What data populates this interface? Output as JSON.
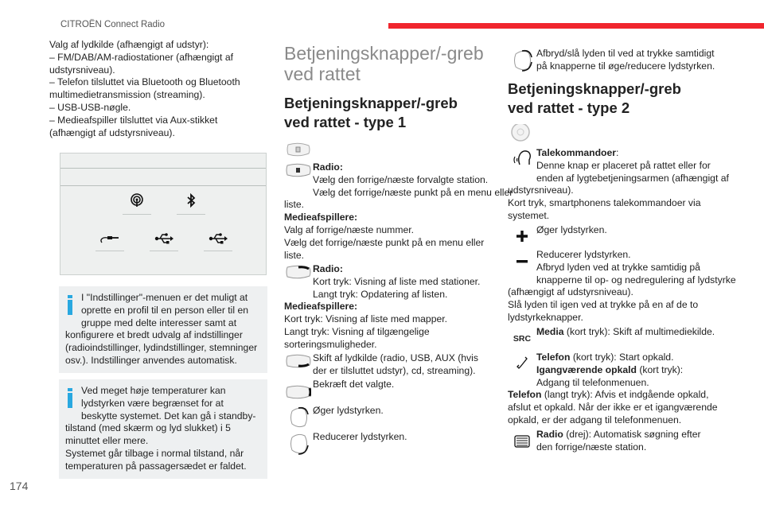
{
  "header": {
    "title": "CITROËN Connect Radio",
    "accent_color": "#f0262e"
  },
  "page_number": "174",
  "left": {
    "intro": "Valg af lydkilde (afhængigt af udstyr):\n– FM/DAB/AM-radiostationer (afhængigt af\nudstyrsniveau).\n– Telefon tilsluttet via Bluetooth og Bluetooth\nmultimedietransmission (streaming).\n– USB-USB-nøgle.\n– Medieafspiller tilsluttet via Aux-stikket\n(afhængigt af udstyrsniveau).",
    "figure_icons": [
      "radio-antenna-icon",
      "bluetooth-icon",
      "aux-cable-icon",
      "usb-icon",
      "usb-icon"
    ],
    "info1": "I \"Indstillinger\"-menuen er det muligt at\noprette en profil til en person eller til en\ngruppe med delte interesser samt at\nkonfigurere et bredt udvalg af indstillinger\n(radioindstillinger, lydindstillinger, stemninger\nosv.). Indstillinger anvendes automatisk.",
    "info2": "Ved meget høje temperaturer kan\nlydstyrken være begrænset for at\nbeskytte systemet. Det kan gå i standby-\ntilstand (med skærm og lyd slukket) i 5\nminuttet eller mere.\nSystemet går tilbage i normal tilstand, når\ntemperaturen på passagersædet er faldet.",
    "info_color": "#29a8e0"
  },
  "middle": {
    "title": "Betjeningsknapper/-greb\nved rattet",
    "subtitle": "Betjeningsknapper/-greb\nved rattet - type 1",
    "items": [
      {
        "b1": "Radio:",
        "t1": "\nVælg den forrige/næste forvalgte station.\nVælg det forrige/næste punkt på en menu eller\nliste.\n",
        "b2": "Medieafspillere:",
        "t2": "\nValg af forrige/næste nummer.\nVælg det forrige/næste punkt på en menu eller\nliste."
      },
      {
        "b1": "Radio:",
        "t1": "\nKort tryk: Visning af liste med stationer.\nLangt tryk: Opdatering af listen.\n",
        "b2": "Medieafspillere:",
        "t2": "\nKort tryk: Visning af liste med mapper.\nLangt tryk: Visning af tilgængelige\nsorteringsmuligheder."
      },
      {
        "t1": "Skift af lydkilde (radio, USB, AUX (hvis\nder er tilsluttet udstyr), cd, streaming)."
      },
      {
        "t1": "Bekræft det valgte."
      },
      {
        "t1": "Øger lydstyrken."
      },
      {
        "t1": "Reducerer lydstyrken."
      }
    ]
  },
  "right": {
    "mute": "Afbryd/slå lyden til ved at trykke samtidigt\npå knapperne til øge/reducere lydstyrken.",
    "subtitle": "Betjeningsknapper/-greb\nved rattet - type 2",
    "voice": {
      "b1": "Talekommandoer",
      "t1": ":\nDenne knap er placeret på rattet eller for\nenden af lygtebetjeningsarmen (afhængigt af\nudstyrsniveau).\nKort tryk, smartphonens talekommandoer via\nsystemet."
    },
    "plus": "Øger lydstyrken.",
    "minus": "Reducerer lydstyrken.\nAfbryd lyden ved at trykke samtidig på\nknapperne til op- og nedregulering af lydstyrke\n(afhængigt af udstyrsniveau).\nSlå lyden til igen ved at trykke på en af de to\nlydstyrkeknapper.",
    "src": {
      "icon_label": "SRC",
      "b1": "Media",
      "t1": " (kort tryk): Skift af multimediekilde."
    },
    "phone": {
      "b1": "Telefon",
      "t1": " (kort tryk): Start opkald.\n",
      "b2": "Igangværende opkald",
      "t2": " (kort tryk):\nAdgang til telefonmenuen.\n",
      "b3": "Telefon",
      "t3": " (langt tryk): Afvis et indgående opkald,\nafslut et opkald. Når der ikke er et igangværende\nopkald, er der adgang til telefonmenuen."
    },
    "radio": {
      "b1": "Radio",
      "t1": " (drej): Automatisk søgning efter\nden forrige/næste station."
    }
  }
}
